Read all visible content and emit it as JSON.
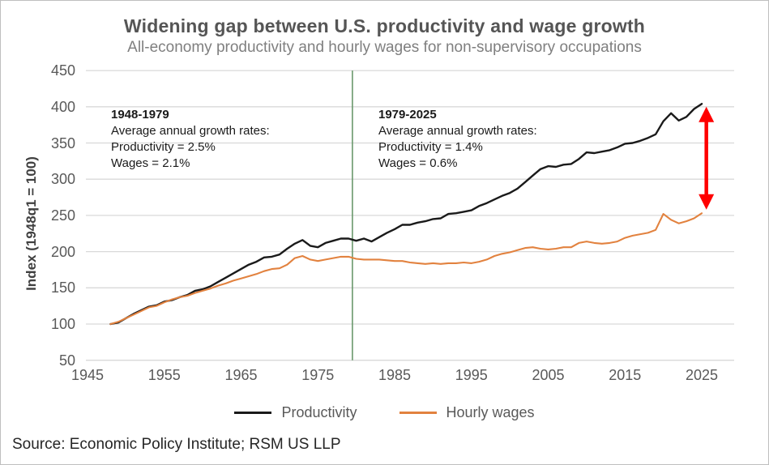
{
  "header": {
    "title": "Widening gap between U.S. productivity and wage growth",
    "subtitle": "All-economy productivity and hourly wages for non-supervisory occupations"
  },
  "chart_data": {
    "type": "line",
    "title": "Widening gap between U.S. productivity and wage growth",
    "subtitle": "All-economy productivity and hourly wages for non-supervisory occupations",
    "ylabel": "Index (1948q1 = 100)",
    "xlabel": "",
    "ylim": [
      50,
      450
    ],
    "xlim": [
      1945,
      2029
    ],
    "y_ticks": [
      50,
      100,
      150,
      200,
      250,
      300,
      350,
      400,
      450
    ],
    "x_ticks": [
      1945,
      1955,
      1965,
      1975,
      1985,
      1995,
      2005,
      2015,
      2025
    ],
    "grid": "horizontal",
    "legend_position": "bottom",
    "x_start": 1948,
    "x_step": 1,
    "series": [
      {
        "name": "Productivity",
        "color": "#1a1a1a",
        "values": [
          100,
          102,
          108,
          114,
          119,
          124,
          126,
          131,
          133,
          137,
          140,
          146,
          148,
          152,
          158,
          164,
          170,
          176,
          182,
          186,
          192,
          193,
          196,
          204,
          211,
          216,
          208,
          206,
          212,
          215,
          218,
          218,
          215,
          218,
          214,
          220,
          226,
          231,
          237,
          237,
          240,
          242,
          245,
          246,
          252,
          253,
          255,
          257,
          263,
          267,
          272,
          277,
          281,
          287,
          296,
          305,
          314,
          318,
          317,
          320,
          321,
          328,
          337,
          336,
          338,
          340,
          344,
          349,
          350,
          353,
          357,
          362,
          380,
          391,
          381,
          386,
          397,
          404
        ]
      },
      {
        "name": "Hourly wages",
        "color": "#E2823F",
        "values": [
          100,
          103,
          108,
          113,
          118,
          123,
          125,
          130,
          134,
          137,
          139,
          143,
          146,
          149,
          153,
          156,
          160,
          163,
          166,
          169,
          173,
          176,
          177,
          182,
          191,
          194,
          189,
          187,
          189,
          191,
          193,
          193,
          190,
          189,
          189,
          189,
          188,
          187,
          187,
          185,
          184,
          183,
          184,
          183,
          184,
          184,
          185,
          184,
          186,
          189,
          194,
          197,
          199,
          202,
          205,
          206,
          204,
          203,
          204,
          206,
          206,
          212,
          214,
          212,
          211,
          212,
          214,
          219,
          222,
          224,
          226,
          230,
          252,
          244,
          239,
          242,
          246,
          253
        ]
      }
    ],
    "vline": {
      "x": 1979.5,
      "color": "#69996C"
    },
    "gap_arrow": {
      "x": 2025.6,
      "top_value": 400,
      "bottom_value": 258,
      "color": "#FF0000"
    },
    "annotations": [
      {
        "heading": "1948-1979",
        "lines": [
          "Average annual growth rates:",
          "Productivity = 2.5%",
          "Wages = 2.1%"
        ]
      },
      {
        "heading": "1979-2025",
        "lines": [
          "Average annual growth rates:",
          "Productivity = 1.4%",
          "Wages = 0.6%"
        ]
      }
    ],
    "colors": {
      "grid": "#D9D9D9"
    }
  },
  "legend": {
    "items": [
      {
        "label": "Productivity",
        "color": "#1a1a1a"
      },
      {
        "label": "Hourly wages",
        "color": "#E2823F"
      }
    ]
  },
  "source": {
    "text": "Source: Economic Policy Institute; RSM US LLP"
  }
}
